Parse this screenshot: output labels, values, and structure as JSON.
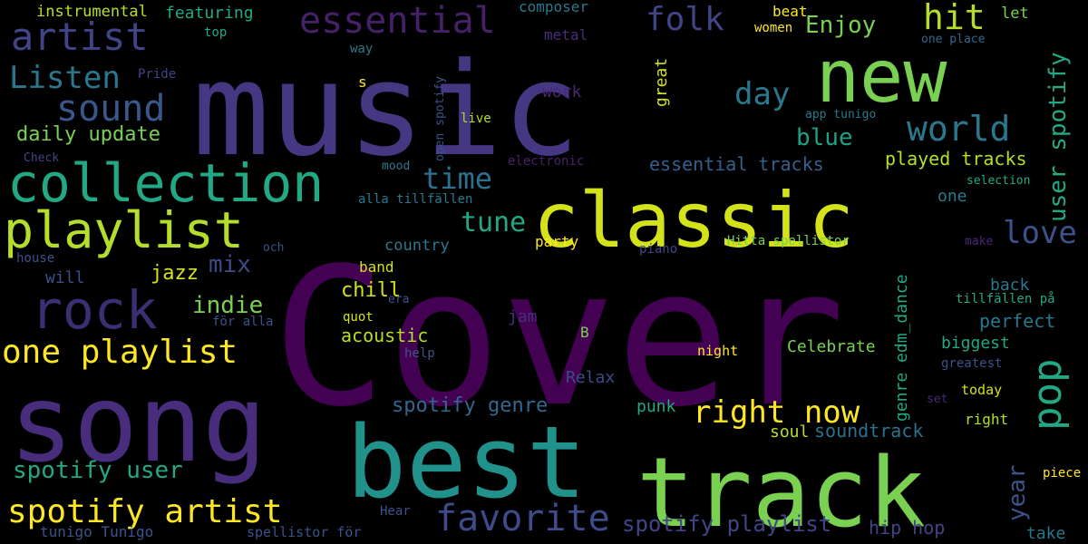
{
  "cloud": {
    "background": "#000000",
    "palette": "viridis",
    "words": [
      {
        "text": "Cover",
        "color": "#440154",
        "vertical": false
      },
      {
        "text": "music",
        "color": "#453781",
        "vertical": false
      },
      {
        "text": "song",
        "color": "#472d7b",
        "vertical": false
      },
      {
        "text": "best",
        "color": "#21918c",
        "vertical": false
      },
      {
        "text": "track",
        "color": "#7ad151",
        "vertical": false
      },
      {
        "text": "classic",
        "color": "#d4e21a",
        "vertical": false
      },
      {
        "text": "new",
        "color": "#7ad151",
        "vertical": false
      },
      {
        "text": "collection",
        "color": "#22a884",
        "vertical": false
      },
      {
        "text": "playlist",
        "color": "#b5de2b",
        "vertical": false
      },
      {
        "text": "rock",
        "color": "#3b2f74",
        "vertical": false
      },
      {
        "text": "artist",
        "color": "#414487",
        "vertical": false
      },
      {
        "text": "essential",
        "color": "#46216a",
        "vertical": false
      },
      {
        "text": "sound",
        "color": "#38588c",
        "vertical": false
      },
      {
        "text": "one playlist",
        "color": "#fde725",
        "vertical": false
      },
      {
        "text": "spotify artist",
        "color": "#fde725",
        "vertical": false
      },
      {
        "text": "favorite",
        "color": "#3e4a89",
        "vertical": false
      },
      {
        "text": "Listen",
        "color": "#2a788e",
        "vertical": false
      },
      {
        "text": "right now",
        "color": "#fde725",
        "vertical": false
      },
      {
        "text": "world",
        "color": "#2a788e",
        "vertical": false
      },
      {
        "text": "pop",
        "color": "#22a884",
        "vertical": true
      },
      {
        "text": "hit",
        "color": "#b5de2b",
        "vertical": false
      },
      {
        "text": "folk",
        "color": "#414487",
        "vertical": false
      },
      {
        "text": "day",
        "color": "#2a788e",
        "vertical": false
      },
      {
        "text": "time",
        "color": "#2c718e",
        "vertical": false
      },
      {
        "text": "love",
        "color": "#3b528b",
        "vertical": false
      },
      {
        "text": "tune",
        "color": "#22a884",
        "vertical": false
      },
      {
        "text": "Enjoy",
        "color": "#7ad151",
        "vertical": false
      },
      {
        "text": "blue",
        "color": "#1fa188",
        "vertical": false
      },
      {
        "text": "spotify user",
        "color": "#22a884",
        "vertical": false
      },
      {
        "text": "user spotify",
        "color": "#22a884",
        "vertical": true
      },
      {
        "text": "year",
        "color": "#3b528b",
        "vertical": true
      },
      {
        "text": "spotify playlist",
        "color": "#414487",
        "vertical": false
      },
      {
        "text": "spotify genre",
        "color": "#31688e",
        "vertical": false
      },
      {
        "text": "daily update",
        "color": "#7ad151",
        "vertical": false
      },
      {
        "text": "indie",
        "color": "#7ad151",
        "vertical": false
      },
      {
        "text": "mix",
        "color": "#3e4a89",
        "vertical": false
      },
      {
        "text": "jazz",
        "color": "#d2e21b",
        "vertical": false
      },
      {
        "text": "chill",
        "color": "#d2e21b",
        "vertical": false
      },
      {
        "text": "acoustic",
        "color": "#b5de2b",
        "vertical": false
      },
      {
        "text": "played tracks",
        "color": "#b5de2b",
        "vertical": false
      },
      {
        "text": "essential tracks",
        "color": "#35608d",
        "vertical": false
      },
      {
        "text": "perfect",
        "color": "#2a788e",
        "vertical": false
      },
      {
        "text": "Celebrate",
        "color": "#7ad151",
        "vertical": false
      },
      {
        "text": "biggest",
        "color": "#22a884",
        "vertical": false
      },
      {
        "text": "back",
        "color": "#2a788e",
        "vertical": false
      },
      {
        "text": "soundtrack",
        "color": "#2c718e",
        "vertical": false
      },
      {
        "text": "genre edm_dance",
        "color": "#22a884",
        "vertical": true
      },
      {
        "text": "instrumental",
        "color": "#b5de2b",
        "vertical": false
      },
      {
        "text": "featuring",
        "color": "#22a884",
        "vertical": false
      },
      {
        "text": "composer",
        "color": "#2a788e",
        "vertical": false
      },
      {
        "text": "metal",
        "color": "#472d7b",
        "vertical": false
      },
      {
        "text": "beat",
        "color": "#fde725",
        "vertical": false
      },
      {
        "text": "women",
        "color": "#fde725",
        "vertical": false
      },
      {
        "text": "let",
        "color": "#7ad151",
        "vertical": false
      },
      {
        "text": "top",
        "color": "#22a884",
        "vertical": false
      },
      {
        "text": "way",
        "color": "#2a788e",
        "vertical": false
      },
      {
        "text": "Pride",
        "color": "#414487",
        "vertical": false
      },
      {
        "text": "great",
        "color": "#d4e21a",
        "vertical": true
      },
      {
        "text": "work",
        "color": "#482878",
        "vertical": false
      },
      {
        "text": "s",
        "color": "#fde725",
        "vertical": false
      },
      {
        "text": "live",
        "color": "#b5de2b",
        "vertical": false
      },
      {
        "text": "open spotify",
        "color": "#3b528b",
        "vertical": true
      },
      {
        "text": "one place",
        "color": "#31688e",
        "vertical": false
      },
      {
        "text": "app tunigo",
        "color": "#2a788e",
        "vertical": false
      },
      {
        "text": "Check",
        "color": "#414487",
        "vertical": false
      },
      {
        "text": "mood",
        "color": "#2a788e",
        "vertical": false
      },
      {
        "text": "electronic",
        "color": "#46216a",
        "vertical": false
      },
      {
        "text": "alla tillfällen",
        "color": "#2a788e",
        "vertical": false
      },
      {
        "text": "selection",
        "color": "#22a884",
        "vertical": false
      },
      {
        "text": "one",
        "color": "#2a788e",
        "vertical": false
      },
      {
        "text": "country",
        "color": "#2a788e",
        "vertical": false
      },
      {
        "text": "party",
        "color": "#fde725",
        "vertical": false
      },
      {
        "text": "piano",
        "color": "#414487",
        "vertical": false
      },
      {
        "text": "Hitta spellistor",
        "color": "#7ad151",
        "vertical": false
      },
      {
        "text": "make",
        "color": "#482878",
        "vertical": false
      },
      {
        "text": "house",
        "color": "#3b528b",
        "vertical": false
      },
      {
        "text": "och",
        "color": "#3b528b",
        "vertical": false
      },
      {
        "text": "will",
        "color": "#3b528b",
        "vertical": false
      },
      {
        "text": "band",
        "color": "#d2e21b",
        "vertical": false
      },
      {
        "text": "era",
        "color": "#3b528b",
        "vertical": false
      },
      {
        "text": "tillfällen på",
        "color": "#22a884",
        "vertical": false
      },
      {
        "text": "för alla",
        "color": "#3b528b",
        "vertical": false
      },
      {
        "text": "jam",
        "color": "#472d7b",
        "vertical": false
      },
      {
        "text": "quot",
        "color": "#d2e21b",
        "vertical": false
      },
      {
        "text": "B",
        "color": "#7ad151",
        "vertical": false
      },
      {
        "text": "help",
        "color": "#3b528b",
        "vertical": false
      },
      {
        "text": "night",
        "color": "#fde725",
        "vertical": false
      },
      {
        "text": "greatest",
        "color": "#3b528b",
        "vertical": false
      },
      {
        "text": "Relax",
        "color": "#3e4a89",
        "vertical": false
      },
      {
        "text": "today",
        "color": "#d2e21b",
        "vertical": false
      },
      {
        "text": "punk",
        "color": "#22a884",
        "vertical": false
      },
      {
        "text": "set",
        "color": "#482878",
        "vertical": false
      },
      {
        "text": "right",
        "color": "#b5de2b",
        "vertical": false
      },
      {
        "text": "soul",
        "color": "#b5de2b",
        "vertical": false
      },
      {
        "text": "piece",
        "color": "#fde725",
        "vertical": false
      },
      {
        "text": "hip hop",
        "color": "#414487",
        "vertical": false
      },
      {
        "text": "take",
        "color": "#2a788e",
        "vertical": false
      },
      {
        "text": "Hear",
        "color": "#3b528b",
        "vertical": false
      },
      {
        "text": "tunigo Tunigo",
        "color": "#3b528b",
        "vertical": false
      },
      {
        "text": "spellistor för",
        "color": "#3b528b",
        "vertical": false
      }
    ]
  }
}
